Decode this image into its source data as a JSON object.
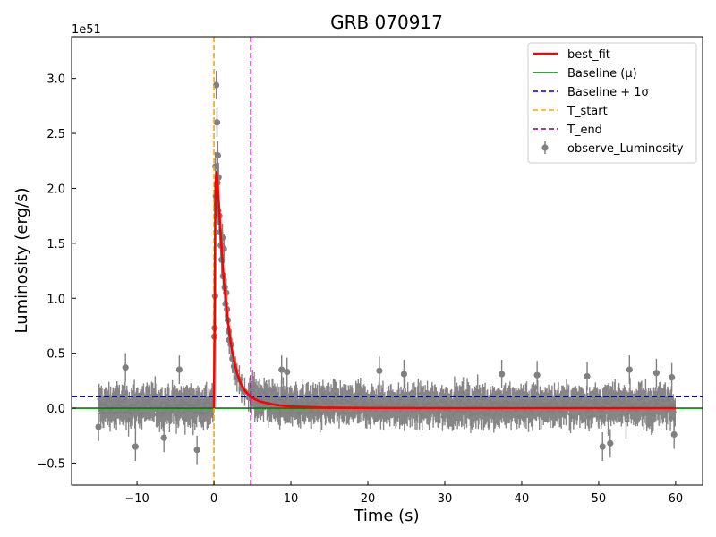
{
  "chart_data": {
    "type": "scatter",
    "title": "GRB 070917",
    "xlabel": "Time (s)",
    "ylabel": "Luminosity (erg/s)",
    "y_offset_label": "1e51",
    "xlim": [
      -18.5,
      63.5
    ],
    "ylim": [
      -0.7,
      3.38
    ],
    "x_ticks": [
      -10,
      0,
      10,
      20,
      30,
      40,
      50,
      60
    ],
    "x_tick_labels": [
      "−10",
      "0",
      "10",
      "20",
      "30",
      "40",
      "50",
      "60"
    ],
    "y_ticks": [
      -0.5,
      0.0,
      0.5,
      1.0,
      1.5,
      2.0,
      2.5,
      3.0
    ],
    "y_tick_labels": [
      "−0.5",
      "0.0",
      "0.5",
      "1.0",
      "1.5",
      "2.0",
      "2.5",
      "3.0"
    ],
    "grid": false,
    "legend_position": "top-right",
    "legend": [
      {
        "label": "best_fit",
        "style": "solid",
        "color": "#ff0000"
      },
      {
        "label": "Baseline (μ)",
        "style": "solid",
        "color": "#008000"
      },
      {
        "label": "Baseline + 1σ",
        "style": "dashed",
        "color": "#0000cd"
      },
      {
        "label": "T_start",
        "style": "dashed",
        "color": "#ffa500"
      },
      {
        "label": "T_end",
        "style": "dashed",
        "color": "#800080"
      },
      {
        "label": "observe_Luminosity",
        "style": "errorbar",
        "color": "#808080"
      }
    ],
    "baseline_mu": 0.0,
    "baseline_plus_1sigma": 0.105,
    "t_start": 0.0,
    "t_end": 4.8,
    "best_fit": {
      "name": "best_fit",
      "color": "#ff0000",
      "x": [
        0.0,
        0.2,
        0.35,
        0.5,
        0.7,
        0.9,
        1.1,
        1.3,
        1.5,
        1.8,
        2.1,
        2.5,
        3.0,
        3.5,
        4.0,
        4.8,
        6.0,
        8.0,
        10.0,
        14.0,
        20.0,
        30.0,
        45.0,
        60.0
      ],
      "y": [
        0.0,
        2.05,
        2.15,
        2.0,
        1.78,
        1.55,
        1.35,
        1.15,
        1.0,
        0.8,
        0.63,
        0.47,
        0.32,
        0.22,
        0.16,
        0.1,
        0.06,
        0.03,
        0.015,
        0.006,
        0.002,
        0.0,
        0.0,
        0.0
      ]
    },
    "observe_Luminosity": {
      "name": "observe_Luminosity",
      "color": "#808080",
      "x_range": [
        -15.0,
        60.0
      ],
      "typical_error": 0.13,
      "peak_points": {
        "x": [
          0.05,
          0.1,
          0.15,
          0.2,
          0.25,
          0.3,
          0.35,
          0.4,
          0.45,
          0.5,
          0.55,
          0.6,
          0.7,
          0.8,
          0.9,
          1.0,
          1.1,
          1.2,
          1.3,
          1.4,
          1.5,
          1.6,
          1.7,
          1.8,
          1.9,
          2.0,
          2.2,
          2.4,
          2.6,
          2.8,
          3.0,
          3.3,
          3.6,
          4.0,
          4.5
        ],
        "y": [
          0.65,
          0.73,
          1.02,
          2.2,
          1.93,
          2.94,
          1.85,
          2.6,
          2.05,
          2.3,
          1.8,
          2.1,
          1.75,
          1.6,
          1.48,
          1.35,
          1.55,
          1.2,
          1.45,
          1.1,
          0.95,
          1.05,
          0.9,
          0.8,
          0.7,
          0.62,
          0.58,
          0.45,
          0.38,
          0.34,
          0.28,
          0.26,
          0.18,
          0.15,
          0.1
        ]
      },
      "notable_points": {
        "x": [
          -15.0,
          -11.5,
          -10.2,
          -6.5,
          -4.5,
          -2.2,
          8.8,
          9.5,
          21.5,
          24.7,
          37.4,
          42.0,
          48.5,
          50.5,
          51.5,
          54.0,
          57.5,
          59.5,
          59.8
        ],
        "y": [
          -0.17,
          0.37,
          -0.35,
          -0.27,
          0.35,
          -0.38,
          0.35,
          0.33,
          0.34,
          0.31,
          0.31,
          0.3,
          0.29,
          -0.35,
          -0.32,
          0.35,
          0.32,
          0.28,
          -0.24
        ]
      }
    }
  }
}
